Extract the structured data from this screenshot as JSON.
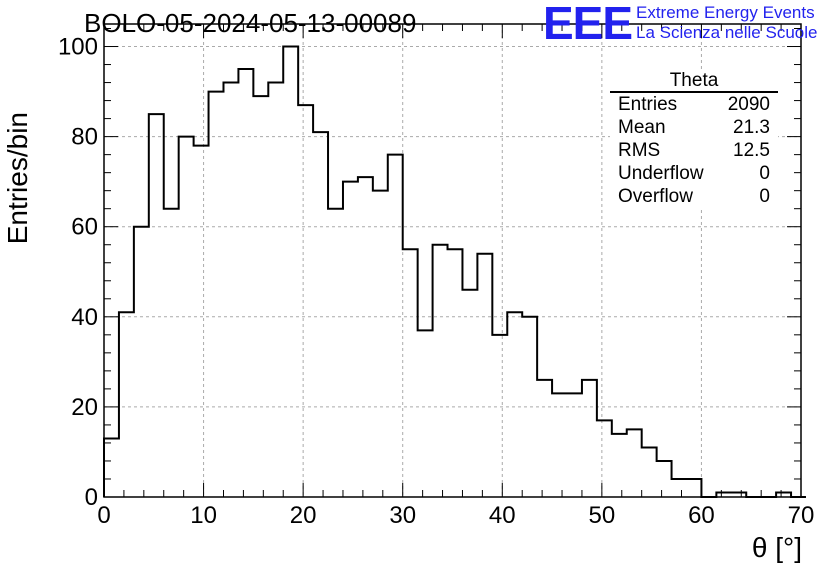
{
  "chart_data": {
    "type": "bar",
    "histogram": true,
    "title": "BOLO-05-2024-05-13-00089",
    "xlabel": "θ [°]",
    "ylabel": "Entries/bin",
    "xlim": [
      0,
      70
    ],
    "ylim": [
      0,
      105
    ],
    "bin_width": 1.5,
    "x_ticks": [
      0,
      10,
      20,
      30,
      40,
      50,
      60,
      70
    ],
    "y_ticks": [
      0,
      20,
      40,
      60,
      80,
      100
    ],
    "grid": true,
    "values": [
      13,
      41,
      60,
      85,
      64,
      80,
      78,
      90,
      92,
      95,
      89,
      92,
      100,
      87,
      81,
      64,
      70,
      71,
      68,
      76,
      55,
      37,
      56,
      55,
      46,
      54,
      36,
      41,
      40,
      26,
      23,
      23,
      26,
      17,
      14,
      15,
      11,
      8,
      4,
      4,
      0,
      1,
      1,
      0,
      0,
      1,
      0
    ],
    "stats": {
      "title": "Theta",
      "rows": [
        {
          "label": "Entries",
          "value": "2090"
        },
        {
          "label": "Mean",
          "value": "21.3"
        },
        {
          "label": "RMS",
          "value": "12.5"
        },
        {
          "label": "Underflow",
          "value": "0"
        },
        {
          "label": "Overflow",
          "value": "0"
        }
      ]
    }
  },
  "logo": {
    "mark": "EEE",
    "line1": "Extreme Energy Events",
    "line2": "La Scienza nelle Scuole",
    "color": "#2222ee"
  }
}
